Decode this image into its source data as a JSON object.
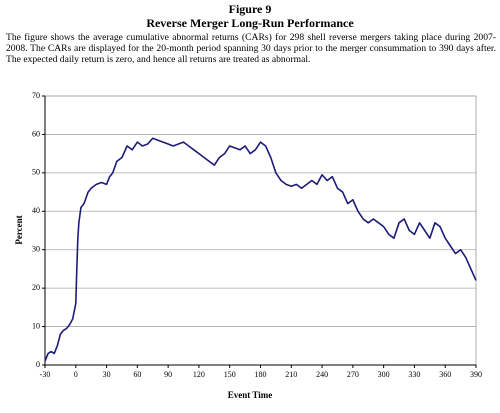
{
  "chart_data": {
    "type": "line",
    "title": "Figure 9",
    "subtitle": "Reverse Merger Long-Run Performance",
    "caption": "The figure shows the average cumulative abnormal returns (CARs) for 298 shell reverse mergers taking place during 2007-2008. The CARs are displayed for the 20-month period spanning 30 days prior to the merger consummation to 390 days after. The expected daily return is zero, and hence all returns are treated as abnormal.",
    "x_label": "Event Time",
    "y_label": "Percent",
    "x": [
      -30,
      -27,
      -24,
      -21,
      -18,
      -15,
      -12,
      -9,
      -6,
      -3,
      0,
      1,
      2,
      3,
      5,
      8,
      12,
      15,
      20,
      25,
      30,
      33,
      36,
      40,
      45,
      50,
      55,
      60,
      65,
      70,
      75,
      80,
      85,
      90,
      95,
      100,
      105,
      110,
      115,
      120,
      125,
      130,
      135,
      140,
      145,
      150,
      155,
      160,
      165,
      170,
      175,
      180,
      185,
      190,
      195,
      200,
      205,
      210,
      215,
      220,
      225,
      230,
      235,
      240,
      245,
      250,
      255,
      260,
      265,
      270,
      275,
      280,
      285,
      290,
      295,
      300,
      305,
      310,
      315,
      320,
      325,
      330,
      335,
      340,
      345,
      350,
      355,
      360,
      365,
      370,
      375,
      380,
      385,
      390
    ],
    "series": [
      {
        "name": "CAR",
        "color": "#1c1c78",
        "values": [
          1,
          3,
          3.5,
          3,
          5,
          8,
          9,
          9.5,
          10.5,
          12,
          16,
          25,
          33,
          37,
          41,
          42,
          45,
          46,
          47,
          47.5,
          47,
          49,
          50,
          53,
          54,
          57,
          56,
          58,
          57,
          57.5,
          59,
          58.5,
          58,
          57.5,
          57,
          57.5,
          58,
          57,
          56,
          55,
          54,
          53,
          52,
          54,
          55,
          57,
          56.5,
          56,
          57,
          55,
          56,
          58,
          57,
          54,
          50,
          48,
          47,
          46.5,
          47,
          46,
          47,
          48,
          47,
          49.5,
          48,
          49,
          46,
          45,
          42,
          43,
          40,
          38,
          37,
          38,
          37,
          36,
          34,
          33,
          37,
          38,
          35,
          34,
          37,
          35,
          33,
          37,
          36,
          33,
          31,
          29,
          30,
          28,
          25,
          22
        ]
      }
    ],
    "xlim": [
      -30,
      390
    ],
    "xticks": [
      -30,
      0,
      30,
      60,
      90,
      120,
      150,
      180,
      210,
      240,
      270,
      300,
      330,
      360,
      390
    ],
    "ylim": [
      0,
      70
    ],
    "yticks": [
      0,
      10,
      20,
      30,
      40,
      50,
      60,
      70
    ],
    "grid": true
  }
}
